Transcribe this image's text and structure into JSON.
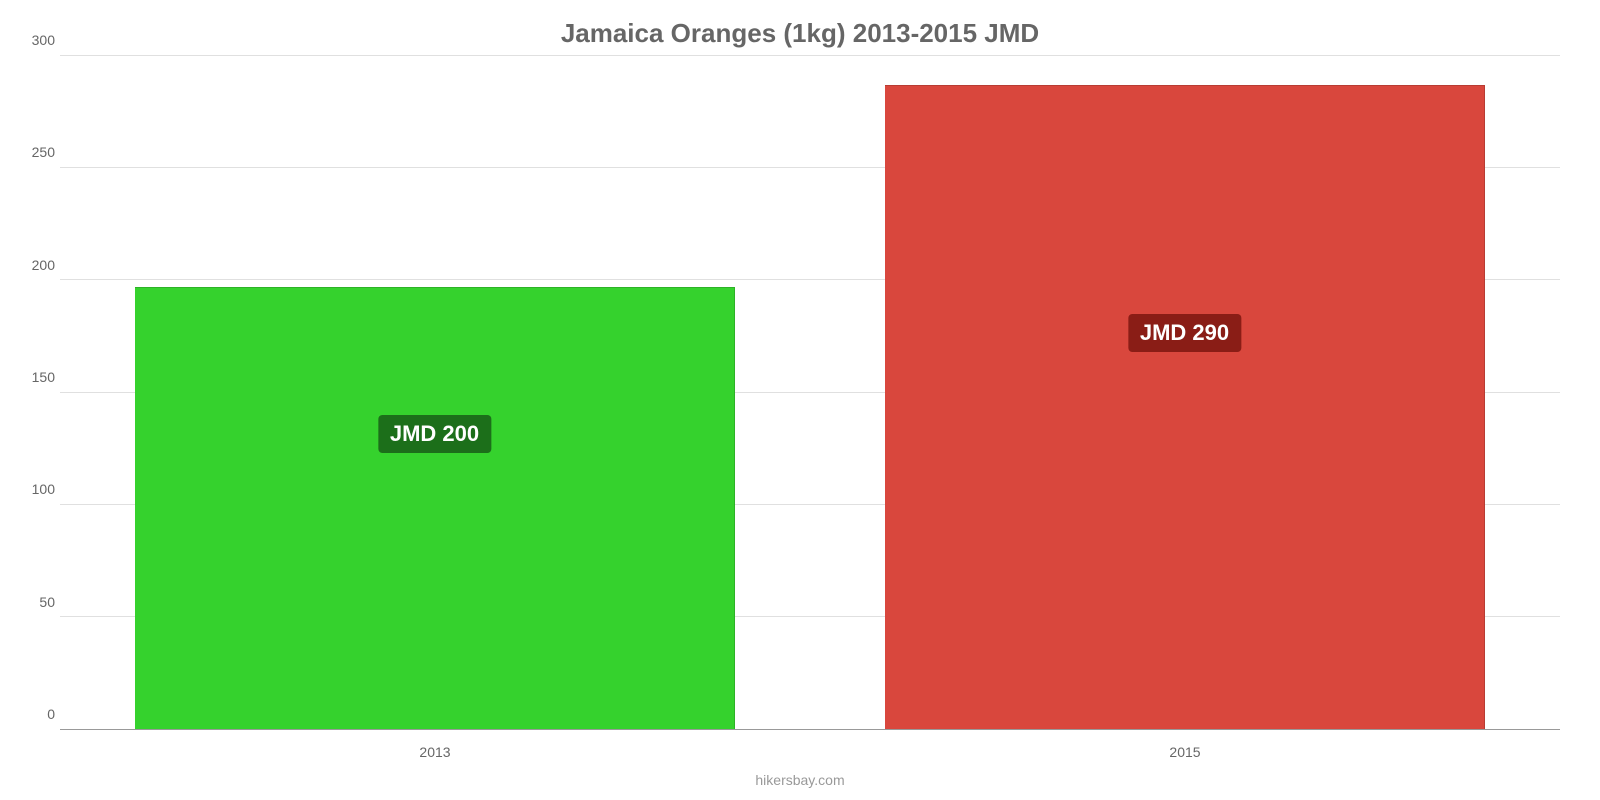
{
  "chart": {
    "type": "bar",
    "title": "Jamaica Oranges (1kg) 2013-2015 JMD",
    "title_color": "#666666",
    "title_fontsize": 26,
    "title_fontweight": "bold",
    "background_color": "#ffffff",
    "credit": "hikersbay.com",
    "credit_color": "#999999",
    "credit_fontsize": 14,
    "y_axis": {
      "min": 0,
      "max": 300,
      "ticks": [
        0,
        50,
        100,
        150,
        200,
        250,
        300
      ],
      "tick_color": "#666666",
      "tick_fontsize": 14,
      "grid_color": "#e0e0e0",
      "axis_line_color": "#999999"
    },
    "x_axis": {
      "tick_color": "#666666",
      "tick_fontsize": 14
    },
    "bar_width_ratio": 0.8,
    "categories": [
      "2013",
      "2015"
    ],
    "bars": [
      {
        "category": "2013",
        "value": 197,
        "color": "#35d22d",
        "label": "JMD 200",
        "label_bg": "#1c6f1a",
        "label_text_color": "#ffffff",
        "label_y_value": 115
      },
      {
        "category": "2015",
        "value": 287,
        "color": "#d9473d",
        "label": "JMD 290",
        "label_bg": "#8a1d16",
        "label_text_color": "#ffffff",
        "label_y_value": 160
      }
    ]
  }
}
